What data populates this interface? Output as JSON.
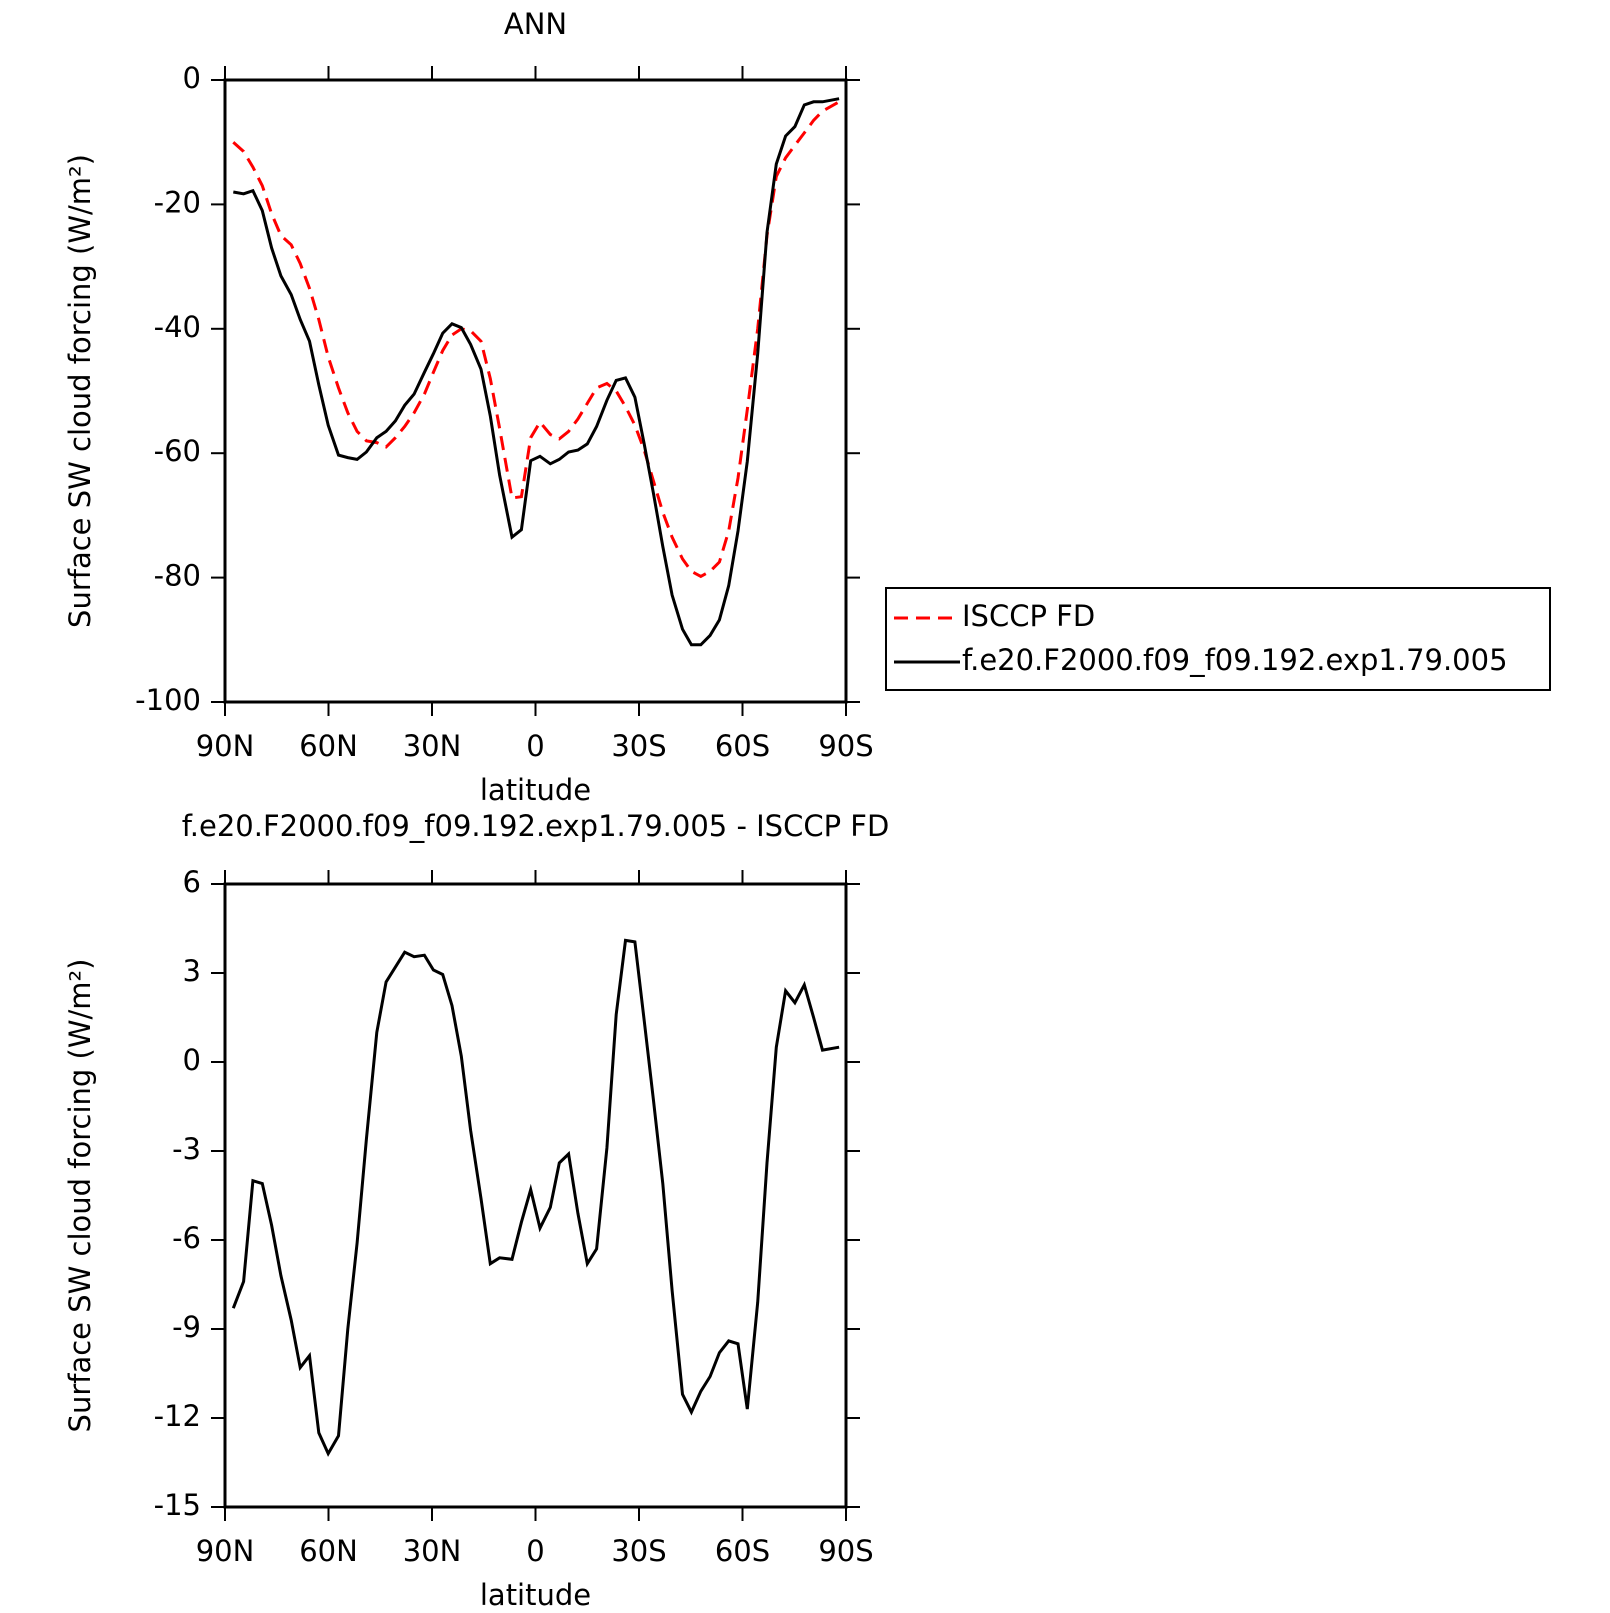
{
  "chart_data": [
    {
      "type": "line",
      "title": "ANN",
      "xlabel": "latitude",
      "ylabel": "Surface SW cloud forcing (W/m²)",
      "x": [
        87.6,
        84.6,
        81.9,
        79.2,
        76.5,
        73.8,
        70.8,
        68.2,
        65.5,
        62.8,
        60.1,
        57.1,
        54.4,
        51.7,
        49,
        46,
        43.3,
        40.6,
        37.9,
        35.2,
        32.2,
        29.6,
        26.9,
        24.2,
        21.5,
        18.8,
        15.8,
        13.1,
        10.4,
        6.8,
        4.1,
        1.4,
        -1.3,
        -4.3,
        -6.9,
        -9.6,
        -12.3,
        -15,
        -17.7,
        -20.7,
        -23.4,
        -26.1,
        -28.8,
        -31.5,
        -34.2,
        -36.9,
        -39.6,
        -42.6,
        -45.2,
        -47.9,
        -50.6,
        -53.3,
        -56,
        -58.7,
        -61.4,
        -64.4,
        -67.1,
        -69.8,
        -72.5,
        -75.2,
        -77.9,
        -80.6,
        -83.2,
        -88
      ],
      "series": [
        {
          "name": "ISCCP FD",
          "color": "#ff0000",
          "line_style": "dashed",
          "values": [
            -10,
            -11.5,
            -14,
            -17,
            -21.5,
            -25,
            -26.5,
            -29.5,
            -33.5,
            -38.5,
            -44.5,
            -49.5,
            -53.5,
            -56.5,
            -58,
            -58.3,
            -59,
            -57.5,
            -55.7,
            -53.5,
            -50.5,
            -47,
            -43.5,
            -41,
            -40,
            -40.3,
            -42,
            -48,
            -56,
            -67.2,
            -67,
            -57.5,
            -55,
            -57,
            -57.7,
            -56.5,
            -54.5,
            -52,
            -49.5,
            -48.8,
            -50,
            -52.5,
            -55.5,
            -59.5,
            -64.5,
            -69.5,
            -73.5,
            -77,
            -79,
            -79.8,
            -79,
            -77.5,
            -72.5,
            -64,
            -53,
            -40,
            -25,
            -15.5,
            -12.5,
            -10.5,
            -8.5,
            -6.5,
            -5,
            -3.5
          ]
        },
        {
          "name": "f.e20.F2000.f09_f09.192.exp1.79.005",
          "color": "#000000",
          "line_style": "solid",
          "values": [
            -18,
            -18.3,
            -17.8,
            -21,
            -27,
            -31.5,
            -34.5,
            -38.5,
            -42,
            -49,
            -55.5,
            -60.3,
            -60.7,
            -61,
            -59.8,
            -57.5,
            -56.5,
            -54.8,
            -52.3,
            -50.5,
            -47,
            -44,
            -40.7,
            -39.2,
            -39.8,
            -42.5,
            -46.5,
            -54,
            -63.5,
            -73.5,
            -72.3,
            -61.2,
            -60.5,
            -61.7,
            -61,
            -59.8,
            -59.5,
            -58.5,
            -55.7,
            -51.5,
            -48.3,
            -47.9,
            -51,
            -58.5,
            -66.5,
            -75,
            -82.8,
            -88.3,
            -90.8,
            -90.8,
            -89.3,
            -86.8,
            -81.3,
            -72.5,
            -61.3,
            -44,
            -24.5,
            -13.5,
            -9,
            -7.5,
            -4,
            -3.5,
            -3.5,
            -3
          ]
        }
      ],
      "xlim": [
        90,
        -90
      ],
      "xticks": [
        {
          "value": 90,
          "label": "90N"
        },
        {
          "value": 60,
          "label": "60N"
        },
        {
          "value": 30,
          "label": "30N"
        },
        0,
        {
          "value": -30,
          "label": "30S"
        },
        {
          "value": -60,
          "label": "60S"
        },
        {
          "value": -90,
          "label": "90S"
        }
      ],
      "ylim": [
        -100,
        0
      ],
      "yticks": [
        -100,
        -80,
        -60,
        -40,
        -20,
        0
      ],
      "legend": "right"
    },
    {
      "type": "line",
      "title": "f.e20.F2000.f09_f09.192.exp1.79.005 - ISCCP FD",
      "xlabel": "latitude",
      "ylabel": "Surface SW cloud forcing (W/m²)",
      "x": [
        87.6,
        84.6,
        81.9,
        79.2,
        76.5,
        73.8,
        70.8,
        68.2,
        65.5,
        62.8,
        60.1,
        57.1,
        54.4,
        51.7,
        49,
        46,
        43.3,
        40.6,
        37.9,
        35.2,
        32.2,
        29.6,
        26.9,
        24.2,
        21.5,
        18.8,
        15.8,
        13.1,
        10.4,
        6.8,
        4.1,
        1.4,
        -1.3,
        -4.3,
        -6.9,
        -9.6,
        -12.3,
        -15,
        -17.7,
        -20.7,
        -23.4,
        -26.1,
        -28.8,
        -31.5,
        -34.2,
        -36.9,
        -39.6,
        -42.6,
        -45.2,
        -47.9,
        -50.6,
        -53.3,
        -56,
        -58.7,
        -61.4,
        -64.4,
        -67.1,
        -69.8,
        -72.5,
        -75.2,
        -77.9,
        -80.6,
        -83.2,
        -88
      ],
      "series": [
        {
          "color": "#000000",
          "line_style": "solid",
          "values": [
            -8.3,
            -7.4,
            -4,
            -4.1,
            -5.5,
            -7.2,
            -8.7,
            -10.3,
            -9.9,
            -12.5,
            -13.2,
            -12.6,
            -9,
            -6.1,
            -2.6,
            1,
            2.7,
            3.2,
            3.7,
            3.55,
            3.6,
            3.1,
            2.95,
            1.9,
            0.2,
            -2.3,
            -4.6,
            -6.8,
            -6.6,
            -6.65,
            -5.4,
            -4.3,
            -5.6,
            -4.9,
            -3.4,
            -3.1,
            -5.1,
            -6.8,
            -6.3,
            -2.9,
            1.6,
            4.1,
            4.05,
            1.4,
            -1.3,
            -4.1,
            -7.7,
            -11.2,
            -11.8,
            -11.1,
            -10.6,
            -9.8,
            -9.4,
            -9.5,
            -11.7,
            -8.1,
            -3.4,
            0.5,
            2.4,
            2,
            2.6,
            1.5,
            0.4,
            0.5
          ]
        }
      ],
      "xlim": [
        90,
        -90
      ],
      "xticks": [
        {
          "value": 90,
          "label": "90N"
        },
        {
          "value": 60,
          "label": "60N"
        },
        {
          "value": 30,
          "label": "30N"
        },
        0,
        {
          "value": -30,
          "label": "30S"
        },
        {
          "value": -60,
          "label": "60S"
        },
        {
          "value": -90,
          "label": "90S"
        }
      ],
      "ylim": [
        -15,
        6
      ],
      "yticks": [
        -15,
        -12,
        -9,
        -6,
        -3,
        0,
        3,
        6
      ]
    }
  ]
}
